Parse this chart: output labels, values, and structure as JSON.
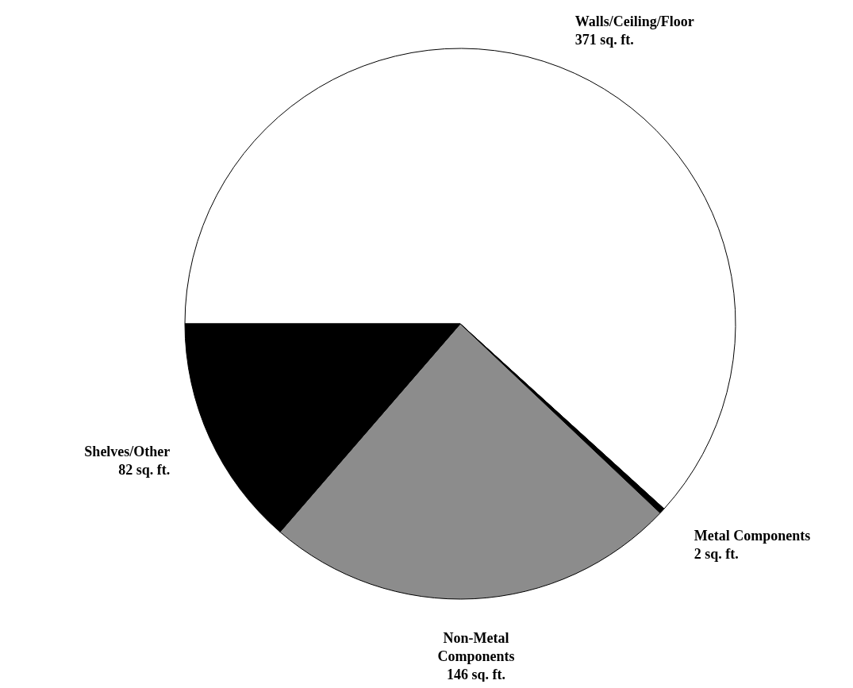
{
  "chart_data": {
    "type": "pie",
    "categories": [
      "Walls/Ceiling/Floor",
      "Metal Components",
      "Non-Metal Components",
      "Shelves/Other"
    ],
    "values": [
      371,
      2,
      146,
      82
    ],
    "value_labels": [
      "371 sq. ft.",
      "2 sq. ft.",
      "146 sq. ft.",
      "82 sq. ft."
    ],
    "colors": [
      "#ffffff",
      "#000000",
      "#8c8c8c",
      "#000000"
    ]
  }
}
